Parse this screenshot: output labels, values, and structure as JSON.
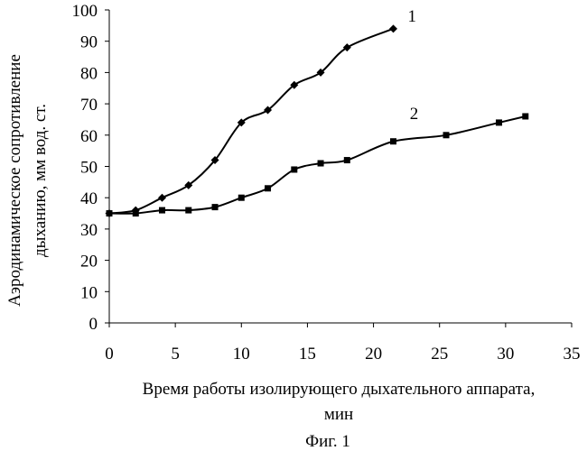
{
  "chart_data": {
    "type": "line",
    "title": "",
    "caption": "Фиг. 1",
    "xlabel_line1": "Время работы изолирующего дыхательного аппарата,",
    "xlabel_line2": "мин",
    "ylabel_line1": "Аэродинамическое сопротивление",
    "ylabel_line2": "дыханию, мм вод. ст.",
    "xlim": [
      0,
      35
    ],
    "ylim": [
      0,
      100
    ],
    "xticks": [
      0,
      5,
      10,
      15,
      20,
      25,
      30,
      35
    ],
    "yticks": [
      0,
      10,
      20,
      30,
      40,
      50,
      60,
      70,
      80,
      90,
      100
    ],
    "grid": false,
    "legend": "none",
    "series": [
      {
        "label": "1",
        "marker": "diamond",
        "color": "#000000",
        "x": [
          0,
          2,
          4,
          6,
          8,
          10,
          12,
          14,
          16,
          18,
          21.5
        ],
        "y": [
          35,
          36,
          40,
          44,
          52,
          64,
          68,
          76,
          80,
          88,
          94
        ]
      },
      {
        "label": "2",
        "marker": "square",
        "color": "#000000",
        "x": [
          0,
          2,
          4,
          6,
          8,
          10,
          12,
          14,
          16,
          18,
          21.5,
          25.5,
          29.5,
          31.5
        ],
        "y": [
          35,
          35,
          36,
          36,
          37,
          40,
          43,
          49,
          51,
          52,
          58,
          60,
          64,
          66
        ]
      }
    ]
  }
}
